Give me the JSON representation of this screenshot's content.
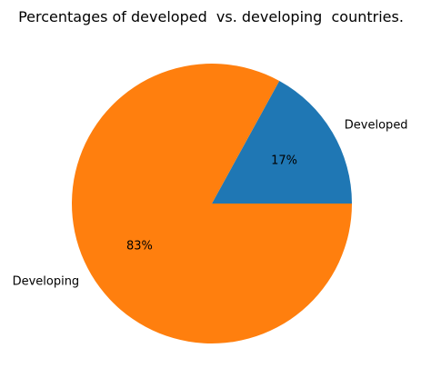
{
  "chart_data": {
    "type": "pie",
    "title": "Percentages of developed  vs. developing  countries.",
    "slices": [
      {
        "label": "Developed",
        "value": 17,
        "pct_label": "17%",
        "color": "#1f77b4"
      },
      {
        "label": "Developing",
        "value": 83,
        "pct_label": "83%",
        "color": "#ff7f0e"
      }
    ],
    "start_angle_deg": 0,
    "direction": "counterclockwise",
    "legend": "none"
  }
}
